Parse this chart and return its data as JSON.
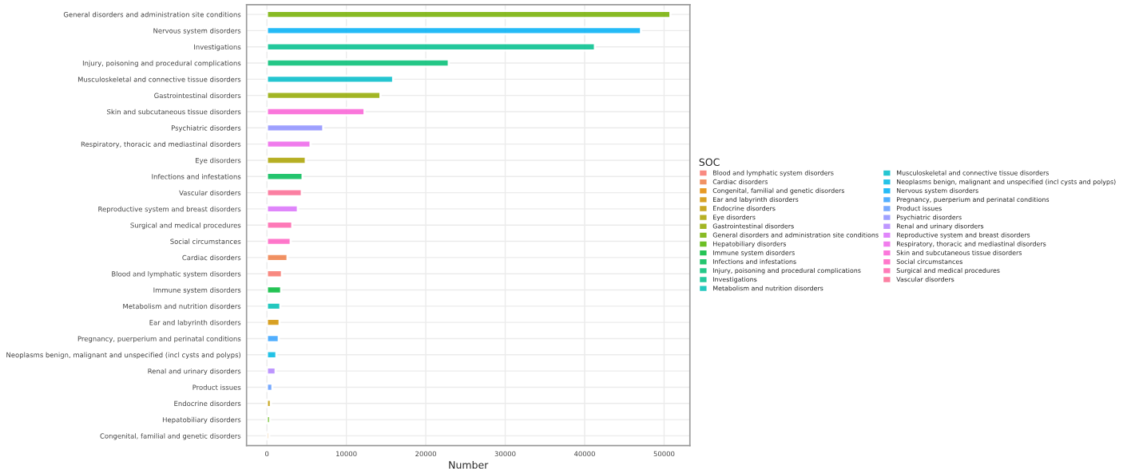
{
  "chart_data": {
    "type": "bar",
    "orientation": "horizontal",
    "xlabel": "Number",
    "legend_title": "SOC",
    "legend": "right",
    "grid": true,
    "categories": [
      "General disorders and administration site conditions",
      "Nervous system disorders",
      "Investigations",
      "Injury, poisoning and procedural complications",
      "Musculoskeletal and connective tissue disorders",
      "Gastrointestinal disorders",
      "Skin and subcutaneous tissue disorders",
      "Psychiatric disorders",
      "Respiratory, thoracic and mediastinal disorders",
      "Eye disorders",
      "Infections and infestations",
      "Vascular disorders",
      "Reproductive system and breast disorders",
      "Surgical and medical procedures",
      "Social circumstances",
      "Cardiac disorders",
      "Blood and lymphatic system disorders",
      "Immune system disorders",
      "Metabolism and nutrition disorders",
      "Ear and labyrinth disorders",
      "Pregnancy, puerperium and perinatal conditions",
      "Neoplasms benign, malignant and unspecified (incl cysts and polyps)",
      "Renal and urinary disorders",
      "Product issues",
      "Endocrine disorders",
      "Hepatobiliary disorders",
      "Congenital, familial and genetic disorders"
    ],
    "series": [
      {
        "name": "Blood and lymphatic system disorders",
        "color": "#f8766d",
        "values": [
          null,
          null,
          null,
          null,
          null,
          null,
          null,
          null,
          null,
          null,
          null,
          null,
          null,
          null,
          null,
          null,
          1900,
          null,
          null,
          null,
          null,
          null,
          null,
          null,
          null,
          null,
          null
        ]
      },
      {
        "name": "Cardiac disorders",
        "color": "#ef7f49",
        "values": [
          null,
          null,
          null,
          null,
          null,
          null,
          null,
          null,
          null,
          null,
          null,
          null,
          null,
          null,
          null,
          2600,
          null,
          null,
          null,
          null,
          null,
          null,
          null,
          null,
          null,
          null,
          null
        ]
      },
      {
        "name": "Congenital, familial and genetic disorders",
        "color": "#e38900",
        "values": [
          null,
          null,
          null,
          null,
          null,
          null,
          null,
          null,
          null,
          null,
          null,
          null,
          null,
          null,
          null,
          null,
          null,
          null,
          null,
          null,
          null,
          null,
          null,
          null,
          null,
          null,
          300
        ]
      },
      {
        "name": "Ear and labyrinth disorders",
        "color": "#d39200",
        "values": [
          null,
          null,
          null,
          null,
          null,
          null,
          null,
          null,
          null,
          null,
          null,
          null,
          null,
          null,
          null,
          null,
          null,
          null,
          null,
          1600,
          null,
          null,
          null,
          null,
          null,
          null,
          null
        ]
      },
      {
        "name": "Endocrine disorders",
        "color": "#c19a00",
        "values": [
          null,
          null,
          null,
          null,
          null,
          null,
          null,
          null,
          null,
          null,
          null,
          null,
          null,
          null,
          null,
          null,
          null,
          null,
          null,
          null,
          null,
          null,
          null,
          null,
          500,
          null,
          null
        ]
      },
      {
        "name": "Eye disorders",
        "color": "#aba300",
        "values": [
          null,
          null,
          null,
          null,
          null,
          null,
          null,
          null,
          null,
          4900,
          null,
          null,
          null,
          null,
          null,
          null,
          null,
          null,
          null,
          null,
          null,
          null,
          null,
          null,
          null,
          null,
          null
        ]
      },
      {
        "name": "Gastrointestinal disorders",
        "color": "#93aa00",
        "values": [
          null,
          null,
          null,
          null,
          null,
          14300,
          null,
          null,
          null,
          null,
          null,
          null,
          null,
          null,
          null,
          null,
          null,
          null,
          null,
          null,
          null,
          null,
          null,
          null,
          null,
          null,
          null
        ]
      },
      {
        "name": "General disorders and administration site conditions",
        "color": "#75b000",
        "values": [
          50800,
          null,
          null,
          null,
          null,
          null,
          null,
          null,
          null,
          null,
          null,
          null,
          null,
          null,
          null,
          null,
          null,
          null,
          null,
          null,
          null,
          null,
          null,
          null,
          null,
          null,
          null
        ]
      },
      {
        "name": "Hepatobiliary disorders",
        "color": "#53b400",
        "values": [
          null,
          null,
          null,
          null,
          null,
          null,
          null,
          null,
          null,
          null,
          null,
          null,
          null,
          null,
          null,
          null,
          null,
          null,
          null,
          null,
          null,
          null,
          null,
          null,
          null,
          400,
          null
        ]
      },
      {
        "name": "Immune system disorders",
        "color": "#00ba38",
        "values": [
          null,
          null,
          null,
          null,
          null,
          null,
          null,
          null,
          null,
          null,
          null,
          null,
          null,
          null,
          null,
          null,
          null,
          1800,
          null,
          null,
          null,
          null,
          null,
          null,
          null,
          null,
          null
        ]
      },
      {
        "name": "Infections and infestations",
        "color": "#00bc56",
        "values": [
          null,
          null,
          null,
          null,
          null,
          null,
          null,
          null,
          null,
          null,
          4500,
          null,
          null,
          null,
          null,
          null,
          null,
          null,
          null,
          null,
          null,
          null,
          null,
          null,
          null,
          null,
          null
        ]
      },
      {
        "name": "Injury, poisoning and procedural complications",
        "color": "#00bf74",
        "values": [
          null,
          null,
          null,
          22900,
          null,
          null,
          null,
          null,
          null,
          null,
          null,
          null,
          null,
          null,
          null,
          null,
          null,
          null,
          null,
          null,
          null,
          null,
          null,
          null,
          null,
          null,
          null
        ]
      },
      {
        "name": "Investigations",
        "color": "#00c08d",
        "values": [
          null,
          null,
          41300,
          null,
          null,
          null,
          null,
          null,
          null,
          null,
          null,
          null,
          null,
          null,
          null,
          null,
          null,
          null,
          null,
          null,
          null,
          null,
          null,
          null,
          null,
          null,
          null
        ]
      },
      {
        "name": "Metabolism and nutrition disorders",
        "color": "#00c0b5",
        "values": [
          null,
          null,
          null,
          null,
          null,
          null,
          null,
          null,
          null,
          null,
          null,
          null,
          null,
          null,
          null,
          null,
          null,
          null,
          1700,
          null,
          null,
          null,
          null,
          null,
          null,
          null,
          null
        ]
      },
      {
        "name": "Musculoskeletal and connective tissue disorders",
        "color": "#00bdca",
        "values": [
          null,
          null,
          null,
          null,
          15900,
          null,
          null,
          null,
          null,
          null,
          null,
          null,
          null,
          null,
          null,
          null,
          null,
          null,
          null,
          null,
          null,
          null,
          null,
          null,
          null,
          null,
          null
        ]
      },
      {
        "name": "Neoplasms benign, malignant and unspecified (incl cysts and polyps)",
        "color": "#00b9e3",
        "values": [
          null,
          null,
          null,
          null,
          null,
          null,
          null,
          null,
          null,
          null,
          null,
          null,
          null,
          null,
          null,
          null,
          null,
          null,
          null,
          null,
          null,
          1200,
          null,
          null,
          null,
          null,
          null
        ]
      },
      {
        "name": "Nervous system disorders",
        "color": "#00b0f6",
        "values": [
          null,
          47100,
          null,
          null,
          null,
          null,
          null,
          null,
          null,
          null,
          null,
          null,
          null,
          null,
          null,
          null,
          null,
          null,
          null,
          null,
          null,
          null,
          null,
          null,
          null,
          null,
          null
        ]
      },
      {
        "name": "Pregnancy, puerperium and perinatal conditions",
        "color": "#35a2ff",
        "values": [
          null,
          null,
          null,
          null,
          null,
          null,
          null,
          null,
          null,
          null,
          null,
          null,
          null,
          null,
          null,
          null,
          null,
          null,
          null,
          null,
          1500,
          null,
          null,
          null,
          null,
          null,
          null
        ]
      },
      {
        "name": "Product issues",
        "color": "#619cff",
        "values": [
          null,
          null,
          null,
          null,
          null,
          null,
          null,
          null,
          null,
          null,
          null,
          null,
          null,
          null,
          null,
          null,
          null,
          null,
          null,
          null,
          null,
          null,
          null,
          700,
          null,
          null,
          null
        ]
      },
      {
        "name": "Psychiatric disorders",
        "color": "#8f91ff",
        "values": [
          null,
          null,
          null,
          null,
          null,
          null,
          null,
          7100,
          null,
          null,
          null,
          null,
          null,
          null,
          null,
          null,
          null,
          null,
          null,
          null,
          null,
          null,
          null,
          null,
          null,
          null,
          null
        ]
      },
      {
        "name": "Renal and urinary disorders",
        "color": "#b385ff",
        "values": [
          null,
          null,
          null,
          null,
          null,
          null,
          null,
          null,
          null,
          null,
          null,
          null,
          null,
          null,
          null,
          null,
          null,
          null,
          null,
          null,
          null,
          null,
          1100,
          null,
          null,
          null,
          null
        ]
      },
      {
        "name": "Reproductive system and breast disorders",
        "color": "#db72fb",
        "values": [
          null,
          null,
          null,
          null,
          null,
          null,
          null,
          null,
          null,
          null,
          null,
          null,
          3900,
          null,
          null,
          null,
          null,
          null,
          null,
          null,
          null,
          null,
          null,
          null,
          null,
          null,
          null
        ]
      },
      {
        "name": "Respiratory, thoracic and mediastinal disorders",
        "color": "#ef67eb",
        "values": [
          null,
          null,
          null,
          null,
          null,
          null,
          null,
          null,
          5500,
          null,
          null,
          null,
          null,
          null,
          null,
          null,
          null,
          null,
          null,
          null,
          null,
          null,
          null,
          null,
          null,
          null,
          null
        ]
      },
      {
        "name": "Skin and subcutaneous tissue disorders",
        "color": "#fb61d7",
        "values": [
          null,
          null,
          null,
          null,
          null,
          null,
          12300,
          null,
          null,
          null,
          null,
          null,
          null,
          null,
          null,
          null,
          null,
          null,
          null,
          null,
          null,
          null,
          null,
          null,
          null,
          null,
          null
        ]
      },
      {
        "name": "Social circumstances",
        "color": "#ff61c3",
        "values": [
          null,
          null,
          null,
          null,
          null,
          null,
          null,
          null,
          null,
          null,
          null,
          null,
          null,
          null,
          3000,
          null,
          null,
          null,
          null,
          null,
          null,
          null,
          null,
          null,
          null,
          null,
          null
        ]
      },
      {
        "name": "Surgical and medical procedures",
        "color": "#ff65ad",
        "values": [
          null,
          null,
          null,
          null,
          null,
          null,
          null,
          null,
          null,
          null,
          null,
          null,
          null,
          3200,
          null,
          null,
          null,
          null,
          null,
          null,
          null,
          null,
          null,
          null,
          null,
          null,
          null
        ]
      },
      {
        "name": "Vascular disorders",
        "color": "#fc6b93",
        "values": [
          null,
          null,
          null,
          null,
          null,
          null,
          null,
          null,
          null,
          null,
          null,
          4400,
          null,
          null,
          null,
          null,
          null,
          null,
          null,
          null,
          null,
          null,
          null,
          null,
          null,
          null,
          null
        ]
      }
    ],
    "xlim": [
      -2560,
      53250
    ],
    "xticks": [
      0,
      10000,
      20000,
      30000,
      40000,
      50000
    ]
  }
}
